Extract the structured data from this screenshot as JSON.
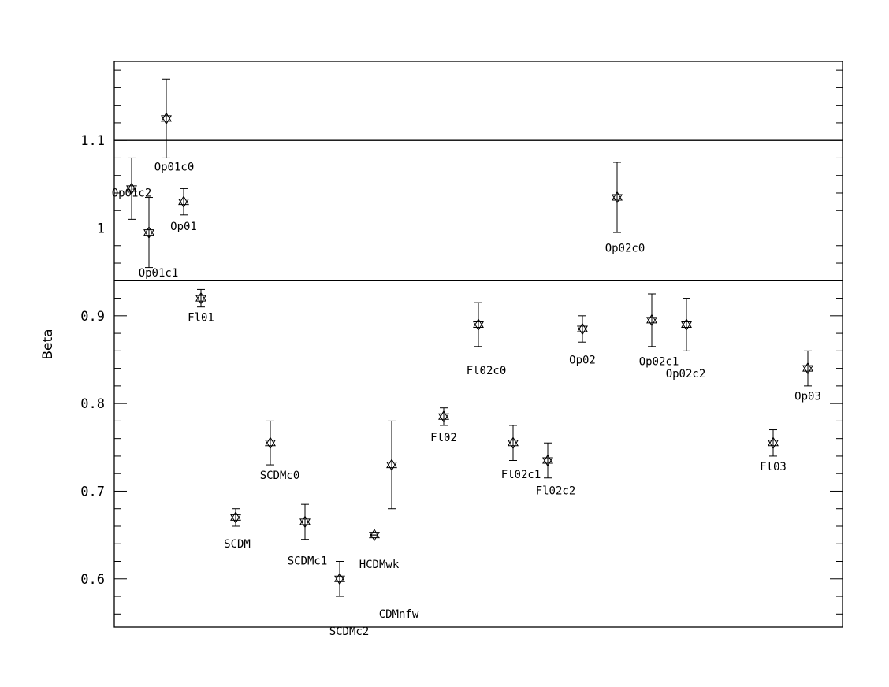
{
  "chart_data": {
    "type": "scatter",
    "ylabel": "Beta",
    "xlabel": "",
    "title": "",
    "xlim": [
      0,
      21
    ],
    "ylim": [
      0.545,
      1.19
    ],
    "yticks": [
      0.6,
      0.7,
      0.8,
      0.9,
      1,
      1.1
    ],
    "ytick_labels": [
      "0.6",
      "0.7",
      "0.8",
      "0.9",
      "1",
      "1.1"
    ],
    "hlines": [
      1.1,
      0.94
    ],
    "grid": false,
    "marker": "star-of-david",
    "points": [
      {
        "label": "Op01c2",
        "x": 0.5,
        "y": 1.045,
        "err_low": 1.01,
        "err_high": 1.08
      },
      {
        "label": "Op01c1",
        "x": 1.0,
        "y": 0.995,
        "err_low": 0.955,
        "err_high": 1.035
      },
      {
        "label": "Op01c0",
        "x": 1.5,
        "y": 1.125,
        "err_low": 1.08,
        "err_high": 1.17
      },
      {
        "label": "Op01",
        "x": 2.0,
        "y": 1.03,
        "err_low": 1.015,
        "err_high": 1.045
      },
      {
        "label": "Fl01",
        "x": 2.5,
        "y": 0.92,
        "err_low": 0.91,
        "err_high": 0.93
      },
      {
        "label": "SCDM",
        "x": 3.5,
        "y": 0.67,
        "err_low": 0.66,
        "err_high": 0.68
      },
      {
        "label": "SCDMc0",
        "x": 4.5,
        "y": 0.755,
        "err_low": 0.73,
        "err_high": 0.78
      },
      {
        "label": "SCDMc1",
        "x": 5.5,
        "y": 0.665,
        "err_low": 0.645,
        "err_high": 0.685
      },
      {
        "label": "SCDMc2",
        "x": 6.5,
        "y": 0.6,
        "err_low": 0.58,
        "err_high": 0.62
      },
      {
        "label": "HCDMwk",
        "x": 7.5,
        "y": 0.65,
        "err_low": 0.65,
        "err_high": 0.65
      },
      {
        "label": "CDMnfw",
        "x": 8.0,
        "y": 0.73,
        "err_low": 0.68,
        "err_high": 0.78
      },
      {
        "label": "Fl02",
        "x": 9.5,
        "y": 0.785,
        "err_low": 0.775,
        "err_high": 0.795
      },
      {
        "label": "Fl02c0",
        "x": 10.5,
        "y": 0.89,
        "err_low": 0.865,
        "err_high": 0.915
      },
      {
        "label": "Fl02c1",
        "x": 11.5,
        "y": 0.755,
        "err_low": 0.735,
        "err_high": 0.775
      },
      {
        "label": "Fl02c2",
        "x": 12.5,
        "y": 0.735,
        "err_low": 0.715,
        "err_high": 0.755
      },
      {
        "label": "Op02",
        "x": 13.5,
        "y": 0.885,
        "err_low": 0.87,
        "err_high": 0.9
      },
      {
        "label": "Op02c0",
        "x": 14.5,
        "y": 1.035,
        "err_low": 0.995,
        "err_high": 1.075
      },
      {
        "label": "Op02c1",
        "x": 15.5,
        "y": 0.895,
        "err_low": 0.865,
        "err_high": 0.925
      },
      {
        "label": "Op02c2",
        "x": 16.5,
        "y": 0.89,
        "err_low": 0.86,
        "err_high": 0.92
      },
      {
        "label": "Fl03",
        "x": 19.0,
        "y": 0.755,
        "err_low": 0.74,
        "err_high": 0.77
      },
      {
        "label": "Op03",
        "x": 20.0,
        "y": 0.84,
        "err_low": 0.82,
        "err_high": 0.86
      }
    ]
  }
}
